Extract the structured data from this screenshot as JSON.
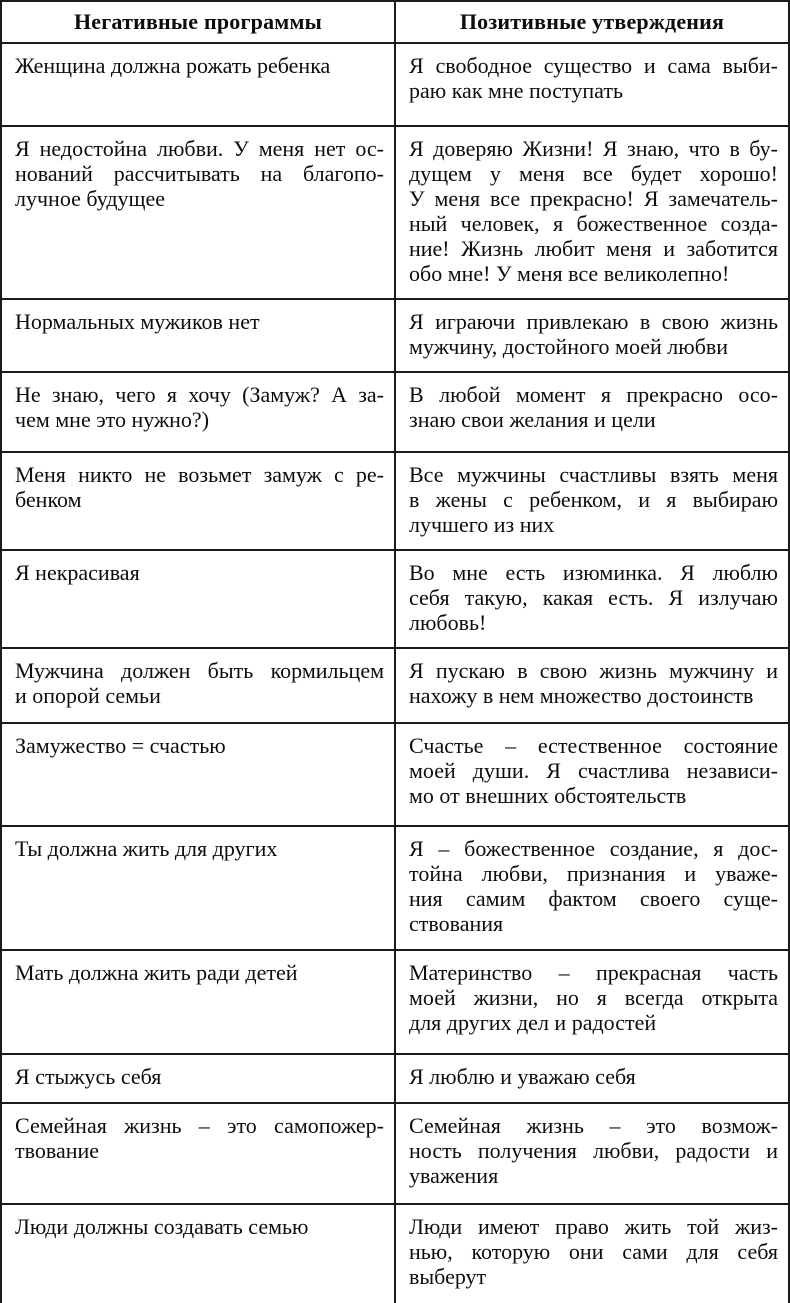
{
  "colors": {
    "background": "#ffffff",
    "border": "#1b1b1b",
    "text": "#0d0d0d"
  },
  "table": {
    "columns": [
      {
        "label": "Негативные программы"
      },
      {
        "label": "Позитивные утверждения"
      }
    ],
    "rows": [
      {
        "negative": [
          "Женщина должна рожать ребенка"
        ],
        "positive": [
          "Я свободное существо и сама выби-",
          "раю как мне поступать"
        ]
      },
      {
        "negative": [
          "Я недостойна любви. У меня нет ос-",
          "нований рассчитывать на благопо-",
          "лучное будущее"
        ],
        "positive": [
          "Я доверяю Жизни! Я знаю, что в бу-",
          "дущем у меня все будет хорошо!",
          "У меня все прекрасно! Я замечатель-",
          "ный человек, я божественное созда-",
          "ние! Жизнь любит меня и заботится",
          "обо мне! У меня все великолепно!"
        ]
      },
      {
        "negative": [
          "Нормальных мужиков нет"
        ],
        "positive": [
          "Я играючи привлекаю в свою жизнь",
          "мужчину, достойного моей любви"
        ]
      },
      {
        "negative": [
          "Не знаю, чего я хочу (Замуж? А за-",
          "чем мне это нужно?)"
        ],
        "positive": [
          "В любой момент я прекрасно осо-",
          "знаю свои желания и цели"
        ]
      },
      {
        "negative": [
          "Меня никто не возьмет замуж с ре-",
          "бенком"
        ],
        "positive": [
          "Все мужчины счастливы взять меня",
          "в жены с ребенком, и я выбираю",
          "лучшего из них"
        ]
      },
      {
        "negative": [
          "Я некрасивая"
        ],
        "positive": [
          "Во мне есть изюминка. Я люблю",
          "себя такую, какая есть. Я излучаю",
          "любовь!"
        ]
      },
      {
        "negative": [
          "Мужчина должен быть кормильцем",
          "и опорой семьи"
        ],
        "positive": [
          "Я пускаю в свою жизнь мужчину и",
          "нахожу в нем множество достоинств"
        ]
      },
      {
        "negative": [
          "Замужество = счастью"
        ],
        "positive": [
          "Счастье – естественное состояние",
          "моей души. Я счастлива независи-",
          "мо от внешних обстоятельств"
        ]
      },
      {
        "negative": [
          "Ты должна жить для других"
        ],
        "positive": [
          "Я – божественное создание, я дос-",
          "тойна любви, признания и уваже-",
          "ния самим фактом своего суще-",
          "ствования"
        ]
      },
      {
        "negative": [
          "Мать должна жить ради детей"
        ],
        "positive": [
          "Материнство – прекрасная часть",
          "моей жизни, но я всегда открыта",
          "для других дел и радостей"
        ]
      },
      {
        "negative": [
          "Я стыжусь себя"
        ],
        "positive": [
          "Я люблю и уважаю себя"
        ]
      },
      {
        "negative": [
          "Семейная жизнь – это самопожер-",
          "твование"
        ],
        "positive": [
          "Семейная жизнь – это возмож-",
          "ность получения любви, радости и",
          "уважения"
        ]
      },
      {
        "negative": [
          "Люди должны создавать семью"
        ],
        "positive": [
          "Люди имеют право жить той жиз-",
          "нью, которую они сами для себя",
          "выберут"
        ]
      }
    ]
  }
}
